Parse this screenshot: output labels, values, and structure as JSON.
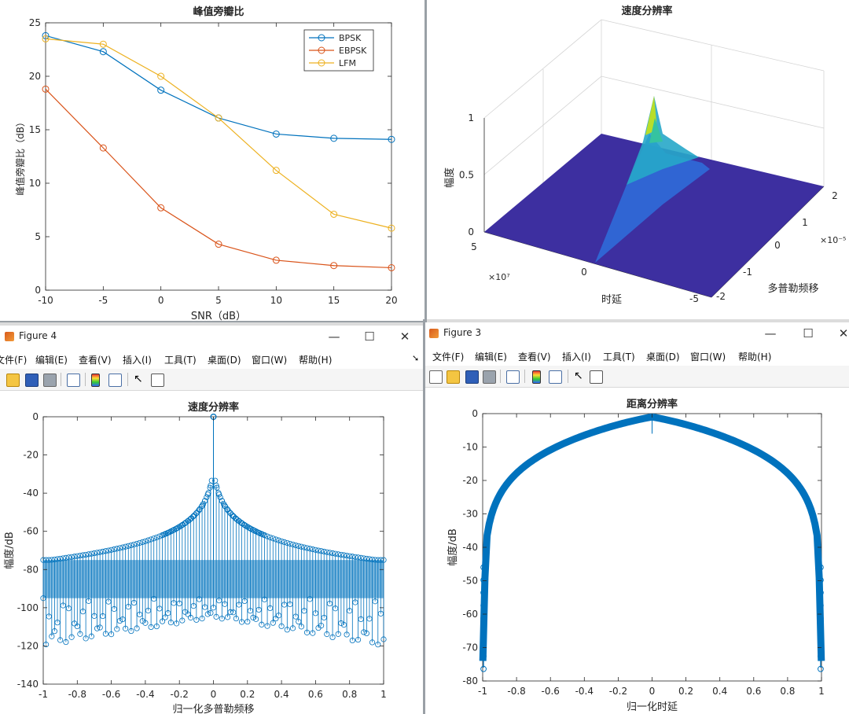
{
  "windows": {
    "top_left": {
      "title": "峰值旁瓣比"
    },
    "top_right": {
      "title": "速度分辨率"
    },
    "bottom_left": {
      "window_title": "Figure 4",
      "menu": [
        "文件(F)",
        "编辑(E)",
        "查看(V)",
        "插入(I)",
        "工具(T)",
        "桌面(D)",
        "窗口(W)",
        "帮助(H)"
      ]
    },
    "bottom_right": {
      "window_title": "Figure 3",
      "menu": [
        "文件(F)",
        "编辑(E)",
        "查看(V)",
        "插入(I)",
        "工具(T)",
        "桌面(D)",
        "窗口(W)",
        "帮助(H)"
      ]
    }
  },
  "window_controls": {
    "minimize": "—",
    "maximize": "☐",
    "close": "✕"
  },
  "icons": [
    "new-file-icon",
    "open-folder-icon",
    "save-icon",
    "print-icon",
    "link-plot-icon",
    "colorbar-icon",
    "legend-icon",
    "cursor-arrow-icon",
    "property-inspector-icon"
  ],
  "chart_data": [
    {
      "type": "line",
      "title": "峰值旁瓣比",
      "xlabel": "SNR（dB）",
      "ylabel": "峰值旁瓣比（dB）",
      "x": [
        -10,
        -5,
        0,
        5,
        10,
        15,
        20
      ],
      "xticks": [
        "-10",
        "-5",
        "0",
        "5",
        "10",
        "15",
        "20"
      ],
      "yticks": [
        "0",
        "5",
        "10",
        "15",
        "20",
        "25"
      ],
      "xlim": [
        -10,
        20
      ],
      "ylim": [
        0,
        25
      ],
      "legend_position": "top-right",
      "series": [
        {
          "name": "BPSK",
          "color": "#0072BD",
          "values": [
            23.8,
            22.3,
            18.7,
            16.1,
            14.6,
            14.2,
            14.1
          ]
        },
        {
          "name": "EBPSK",
          "color": "#D95319",
          "values": [
            18.8,
            13.3,
            7.7,
            4.3,
            2.8,
            2.3,
            2.1
          ]
        },
        {
          "name": "LFM",
          "color": "#EDB120",
          "values": [
            23.5,
            23.0,
            20.0,
            16.1,
            11.2,
            7.1,
            5.8
          ]
        }
      ]
    },
    {
      "type": "surface",
      "title": "速度分辨率",
      "xlabel": "时延",
      "ylabel": "多普勒频移",
      "zlabel": "幅度",
      "xticks": [
        "5",
        "0",
        "-5"
      ],
      "x_exponent": "×10⁷",
      "yticks": [
        "2",
        "1",
        "0",
        "-1",
        "-2"
      ],
      "y_exponent": "×10⁻⁵",
      "zticks": [
        "0",
        "0.5",
        "1"
      ],
      "zlim": [
        0,
        1
      ]
    },
    {
      "type": "stem",
      "title": "速度分辨率",
      "xlabel": "归一化多普勒频移",
      "ylabel": "幅度/dB",
      "xticks": [
        "-1",
        "-0.8",
        "-0.6",
        "-0.4",
        "-0.2",
        "0",
        "0.2",
        "0.4",
        "0.6",
        "0.8",
        "1"
      ],
      "yticks": [
        "0",
        "-20",
        "-40",
        "-60",
        "-80",
        "-100",
        "-120",
        "-140"
      ],
      "xlim": [
        -1,
        1
      ],
      "ylim": [
        -140,
        0
      ],
      "color": "#0072BD",
      "envelope_floor": -75,
      "peak": 0,
      "lower_extreme": -120
    },
    {
      "type": "stem",
      "title": "距离分辨率",
      "xlabel": "归一化时延",
      "ylabel": "幅度/dB",
      "xticks": [
        "-1",
        "-0.8",
        "-0.6",
        "-0.4",
        "-0.2",
        "0",
        "0.2",
        "0.4",
        "0.6",
        "0.8",
        "1"
      ],
      "yticks": [
        "0",
        "-10",
        "-20",
        "-30",
        "-40",
        "-50",
        "-60",
        "-70",
        "-80"
      ],
      "xlim": [
        -1,
        1
      ],
      "ylim": [
        -80,
        0
      ],
      "color": "#0072BD",
      "peak": -1,
      "edge_min": -76
    }
  ]
}
